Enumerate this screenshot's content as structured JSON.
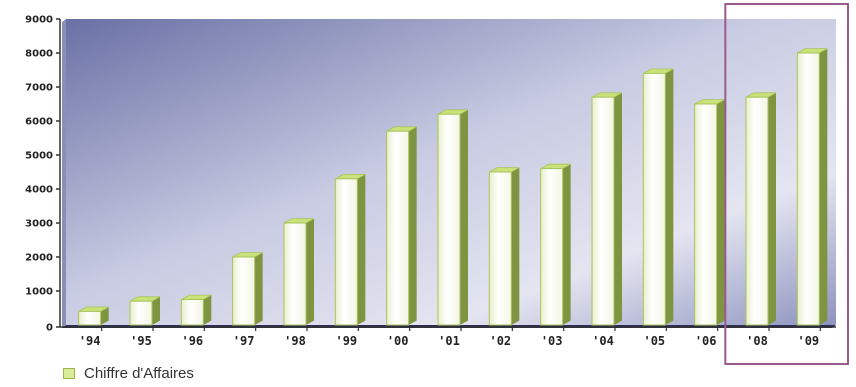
{
  "chart_data": {
    "type": "bar",
    "categories": [
      "'94",
      "'95",
      "'96",
      "'97",
      "'98",
      "'99",
      "'00",
      "'01",
      "'02",
      "'03",
      "'04",
      "'05",
      "'06",
      "'08",
      "'09"
    ],
    "series": [
      {
        "name": "Chiffre d'Affaires",
        "values": [
          400,
          700,
          750,
          2000,
          3000,
          4300,
          5700,
          6200,
          4500,
          4600,
          6700,
          7400,
          6500,
          6700,
          8000
        ]
      }
    ],
    "yticks": [
      "0",
      "1000",
      "2000",
      "3000",
      "4000",
      "5000",
      "6000",
      "7000",
      "8000",
      "9000"
    ],
    "ylim": [
      0,
      9000
    ],
    "grid": false,
    "legend_position": "bottom-left",
    "highlight": {
      "categories": [
        "'08",
        "'09"
      ],
      "color": "#9b5a8c"
    },
    "colors": {
      "bar_face_top": "#fbfcf2",
      "bar_face_bottom": "#ffffff",
      "bar_side": "#7e9440",
      "bar_top": "#c9e27a",
      "bar_outline": "#a9c45a",
      "background_dark": "#6d73a6",
      "background_light": "#f4f4fa",
      "axis": "#333333"
    }
  }
}
